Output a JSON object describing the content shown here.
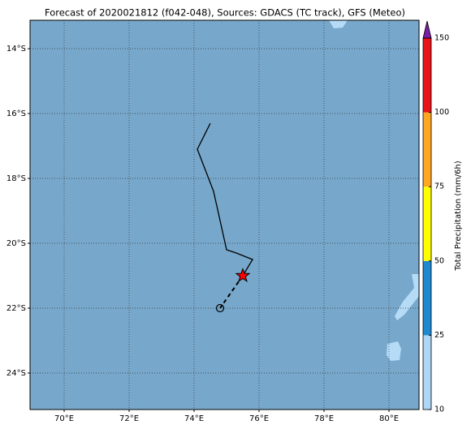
{
  "map": {
    "title": "Forecast of 2020021812 (f042-048), Sources: GDACS (TC track), GFS (Meteo)",
    "xlim": [
      68.95,
      80.925
    ],
    "ylim": [
      -25.125,
      -13.125
    ],
    "xticks": [
      {
        "value": 70,
        "label": "70°E"
      },
      {
        "value": 72,
        "label": "72°E"
      },
      {
        "value": 74,
        "label": "74°E"
      },
      {
        "value": 76,
        "label": "76°E"
      },
      {
        "value": 78,
        "label": "78°E"
      },
      {
        "value": 80,
        "label": "80°E"
      }
    ],
    "yticks": [
      {
        "value": -14,
        "label": "14°S"
      },
      {
        "value": -16,
        "label": "16°S"
      },
      {
        "value": -18,
        "label": "18°S"
      },
      {
        "value": -20,
        "label": "20°S"
      },
      {
        "value": -22,
        "label": "22°S"
      },
      {
        "value": -24,
        "label": "24°S"
      }
    ],
    "grid": true,
    "track": {
      "lon": [
        74.5,
        74.1,
        74.6,
        75.0,
        75.3,
        75.8,
        75.5
      ],
      "lat": [
        -16.3,
        -17.1,
        -18.4,
        -20.2,
        -20.3,
        -20.5,
        -21.0
      ]
    },
    "forecast": {
      "lon": [
        75.5,
        74.8
      ],
      "lat": [
        -21.0,
        -22.0
      ]
    },
    "colorbar": {
      "label": "Total Precipitation (mm/6h)",
      "levels": [
        10,
        25,
        50,
        75,
        100,
        150
      ],
      "colors": [
        "#b0d6f5",
        "#1e88d0",
        "#ffff00",
        "#ffa722",
        "#e8141a"
      ],
      "extend_color": "#7b1fa6"
    }
  }
}
